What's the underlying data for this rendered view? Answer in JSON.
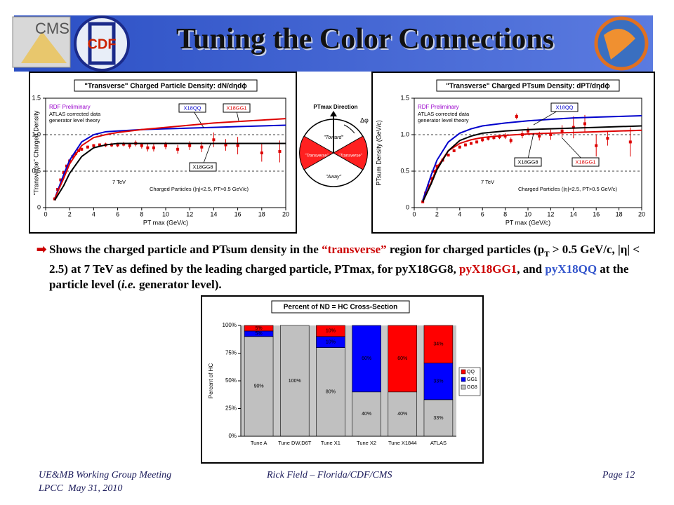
{
  "header": {
    "title": "Tuning the Color Connections",
    "logos": [
      "CMS",
      "CDF"
    ]
  },
  "diagram": {
    "title": "PTmax Direction",
    "angle": "Δφ",
    "toward": "\"Toward\"",
    "transverse_left": "\"Transverse\"",
    "transverse_right": "\"Transverse\"",
    "away": "\"Away\""
  },
  "bullet": [
    "Shows the charged particle and PTsum density in the ",
    "“transverse”",
    " region for charged particles (p",
    "T",
    " > 0.5 GeV/c, |η| < 2.5) at 7 TeV as defined by the leading charged particle, PTmax, for pyX18GG8, ",
    "pyX18GG1",
    ", and ",
    "pyX18QQ",
    " at the particle level (",
    "i.e.",
    " generator level)."
  ],
  "footer": {
    "meeting": "UE&MB Working Group Meeting",
    "place": "LPCC  May 31, 2010",
    "author": "Rick Field – Florida/CDF/CMS",
    "page": "Page 12"
  },
  "chart_data": [
    {
      "type": "line",
      "title": "\"Transverse\" Charged Particle Density: dN/dηdϕ",
      "xlabel": "PT max  (GeV/c)",
      "ylabel": "\"Transverse\" Charged Density",
      "annotations": [
        "ATLAS corrected data",
        "generator level theory",
        "7 TeV",
        "Charged Particles (|η|<2.5, PT>0.5 GeV/c)"
      ],
      "xlim": [
        0,
        20
      ],
      "xticks": [
        0,
        2,
        4,
        6,
        8,
        10,
        12,
        14,
        16,
        18,
        20
      ],
      "ylim": [
        0,
        1.5
      ],
      "yticks": [
        0,
        0.5,
        {
          "value": 1,
          "label": "1.0"
        },
        1.5
      ],
      "grid": true,
      "x": [
        0.75,
        1.5,
        2,
        3,
        4,
        5,
        6,
        8,
        10,
        12,
        14,
        16,
        18,
        20
      ],
      "series": [
        {
          "name": "RDF Preliminary",
          "color": "#dd0000",
          "x": [
            0.75,
            1,
            1.25,
            1.5,
            1.75,
            2,
            2.25,
            2.5,
            2.75,
            3,
            3.5,
            4,
            4.5,
            5,
            5.5,
            6,
            6.5,
            7,
            7.5,
            8,
            8.5,
            9,
            10,
            11,
            12,
            13,
            14,
            15,
            16,
            18,
            19.5
          ],
          "values": [
            0.12,
            0.25,
            0.38,
            0.48,
            0.57,
            0.64,
            0.7,
            0.74,
            0.78,
            0.8,
            0.83,
            0.85,
            0.86,
            0.86,
            0.86,
            0.86,
            0.87,
            0.85,
            0.88,
            0.85,
            0.82,
            0.82,
            0.85,
            0.8,
            0.85,
            0.83,
            0.93,
            0.86,
            0.85,
            0.75,
            0.77
          ],
          "errors": [
            0.01,
            0.01,
            0.01,
            0.01,
            0.01,
            0.01,
            0.01,
            0.01,
            0.02,
            0.02,
            0.02,
            0.02,
            0.02,
            0.03,
            0.03,
            0.03,
            0.03,
            0.04,
            0.04,
            0.04,
            0.05,
            0.05,
            0.05,
            0.06,
            0.06,
            0.07,
            0.1,
            0.08,
            0.12,
            0.12,
            0.15
          ]
        },
        {
          "name": "X18QQ",
          "color": "#0000cc",
          "values": [
            0.12,
            0.45,
            0.65,
            0.9,
            1.0,
            1.04,
            1.05,
            1.07,
            1.08,
            1.09,
            1.1,
            1.11,
            1.12,
            1.13
          ]
        },
        {
          "name": "X18GG1",
          "color": "#dd0000",
          "values": [
            0.12,
            0.4,
            0.6,
            0.85,
            0.96,
            1.0,
            1.03,
            1.07,
            1.1,
            1.13,
            1.16,
            1.18,
            1.2,
            1.22
          ]
        },
        {
          "name": "X18GG8",
          "color": "#000000",
          "values": [
            0.1,
            0.3,
            0.47,
            0.7,
            0.82,
            0.86,
            0.88,
            0.88,
            0.88,
            0.88,
            0.88,
            0.88,
            0.88,
            0.88
          ]
        }
      ]
    },
    {
      "type": "line",
      "title": "\"Transverse\" Charged PTsum Density: dPT/dηdϕ",
      "xlabel": "PT max  (GeV/c)",
      "ylabel": "PTsum Density (GeV/c)",
      "annotations": [
        "ATLAS corrected data",
        "generator level theory",
        "7 TeV",
        "Charged Particles (|η|<2.5, PT>0.5 GeV/c)"
      ],
      "xlim": [
        0,
        20
      ],
      "xticks": [
        0,
        2,
        4,
        6,
        8,
        10,
        12,
        14,
        16,
        18,
        20
      ],
      "ylim": [
        0,
        1.5
      ],
      "yticks": [
        0,
        0.5,
        {
          "value": 1,
          "label": "1.0"
        },
        1.5
      ],
      "grid": true,
      "x": [
        0.75,
        1.5,
        2,
        3,
        4,
        5,
        6,
        8,
        10,
        12,
        14,
        16,
        18,
        20
      ],
      "series": [
        {
          "name": "RDF Preliminary",
          "color": "#dd0000",
          "x": [
            0.75,
            1,
            1.25,
            1.5,
            1.75,
            2,
            2.5,
            3,
            3.5,
            4,
            4.5,
            5,
            5.5,
            6,
            6.5,
            7,
            7.5,
            8,
            8.5,
            9,
            9.5,
            10,
            11,
            12,
            13,
            14,
            15,
            16,
            17,
            19
          ],
          "values": [
            0.08,
            0.2,
            0.3,
            0.4,
            0.5,
            0.57,
            0.65,
            0.72,
            0.78,
            0.83,
            0.86,
            0.88,
            0.9,
            0.93,
            0.95,
            0.96,
            0.97,
            0.98,
            0.92,
            1.25,
            1.0,
            1.05,
            0.98,
            1.0,
            1.05,
            1.1,
            1.15,
            0.85,
            0.95,
            0.9
          ],
          "errors": [
            0.01,
            0.01,
            0.01,
            0.01,
            0.01,
            0.01,
            0.01,
            0.01,
            0.02,
            0.02,
            0.02,
            0.02,
            0.02,
            0.03,
            0.03,
            0.03,
            0.03,
            0.04,
            0.04,
            0.04,
            0.05,
            0.05,
            0.06,
            0.07,
            0.08,
            0.15,
            0.12,
            0.15,
            0.1,
            0.2
          ]
        },
        {
          "name": "X18QQ",
          "color": "#0000cc",
          "values": [
            0.1,
            0.45,
            0.65,
            0.9,
            1.02,
            1.08,
            1.12,
            1.16,
            1.19,
            1.21,
            1.23,
            1.24,
            1.25,
            1.26
          ]
        },
        {
          "name": "X18GG1",
          "color": "#dd0000",
          "values": [
            0.08,
            0.35,
            0.55,
            0.78,
            0.88,
            0.93,
            0.96,
            0.99,
            1.01,
            1.02,
            1.03,
            1.04,
            1.05,
            1.06
          ]
        },
        {
          "name": "X18GG8",
          "color": "#000000",
          "values": [
            0.08,
            0.33,
            0.52,
            0.78,
            0.92,
            0.98,
            1.02,
            1.05,
            1.07,
            1.08,
            1.09,
            1.1,
            1.11,
            1.12
          ]
        }
      ]
    },
    {
      "type": "stacked-bar",
      "title": "Percent of ND = HC Cross-Section",
      "ylabel": "Percent of HC",
      "categories": [
        "Tune A",
        "Tune DW,D6T",
        "Tune X1",
        "Tune X2",
        "Tune X1844",
        "ATLAS"
      ],
      "ylim": [
        0,
        100
      ],
      "yticks": [
        {
          "value": 0,
          "label": "0%"
        },
        {
          "value": 25,
          "label": "25%"
        },
        {
          "value": 50,
          "label": "50%"
        },
        {
          "value": 75,
          "label": "75%"
        },
        {
          "value": 100,
          "label": "100%"
        }
      ],
      "series": [
        {
          "name": "GG8",
          "color": "#c0c0c0",
          "values": [
            90,
            100,
            80,
            40,
            40,
            33
          ],
          "value_labels": [
            "90%",
            "100%",
            "80%",
            "40%",
            "40%",
            "33%"
          ]
        },
        {
          "name": "GG1",
          "color": "#0000ff",
          "values": [
            5,
            0,
            10,
            60,
            0,
            33
          ],
          "value_labels": [
            "5%",
            null,
            "10%",
            "60%",
            null,
            "33%"
          ]
        },
        {
          "name": "QQ",
          "color": "#ff0000",
          "values": [
            5,
            0,
            10,
            0,
            60,
            34
          ],
          "value_labels": [
            "5%",
            null,
            "10%",
            null,
            "60%",
            "34%"
          ]
        }
      ]
    }
  ]
}
